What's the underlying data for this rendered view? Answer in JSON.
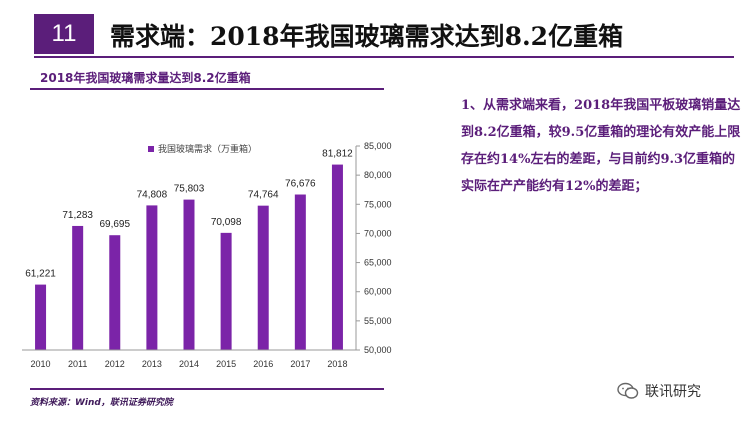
{
  "slide": {
    "number": "11",
    "title": "需求端：2018年我国玻璃需求达到8.2亿重箱"
  },
  "chart_heading": "2018年我国玻璃需求量达到8.2亿重箱",
  "chart_data": {
    "type": "bar",
    "legend_position": "top-center",
    "grid": false,
    "categories": [
      "2010",
      "2011",
      "2012",
      "2013",
      "2014",
      "2015",
      "2016",
      "2017",
      "2018"
    ],
    "series": [
      {
        "name": "我国玻璃需求（万重箱）",
        "values": [
          61221,
          71283,
          69695,
          74808,
          75803,
          70098,
          74764,
          76676,
          81812
        ],
        "labels": [
          "61,221",
          "71,283",
          "69,695",
          "74,808",
          "75,803",
          "70,098",
          "74,764",
          "76,676",
          "81,812"
        ]
      }
    ],
    "ylim": [
      50000,
      85000
    ],
    "yaxis_position": "right",
    "yticks": [
      50000,
      55000,
      60000,
      65000,
      70000,
      75000,
      80000,
      85000
    ],
    "ytick_labels": [
      "50,000",
      "55,000",
      "60,000",
      "65,000",
      "70,000",
      "75,000",
      "80,000",
      "85,000"
    ],
    "colors": {
      "bar": "#7b24a8"
    }
  },
  "source": "资料来源：Wind，联讯证券研究院",
  "note": "1、从需求端来看，2018年我国平板玻璃销量达到8.2亿重箱，较9.5亿重箱的理论有效产能上限存在约14%左右的差距，与目前约9.3亿重箱的实际在产产能约有12%的差距；",
  "brand": {
    "name": "联讯研究",
    "icon": "wechat-icon"
  },
  "colors": {
    "accent": "#5b1e7a"
  }
}
